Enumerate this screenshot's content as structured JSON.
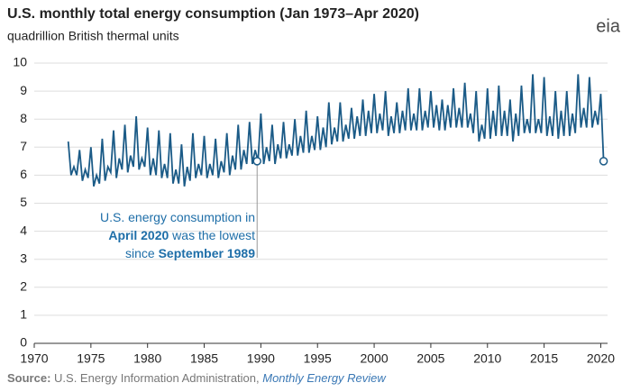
{
  "chart_data": {
    "type": "line",
    "title": "U.S. monthly total energy consumption (Jan 1973–Apr 2020)",
    "subtitle": "quadrillion British thermal units",
    "logo": "eia",
    "source": {
      "label": "Source:",
      "text": " U.S. Energy Information Administration, ",
      "link": "Monthly Energy Review"
    },
    "annotation": {
      "line1": "U.S. energy consumption in",
      "line2_bold": "April 2020",
      "line2": " was the lowest",
      "line3": "since ",
      "line3_bold": "September 1989"
    },
    "color": "#1b5b87",
    "grid": true,
    "xlim": [
      1970,
      2020.6
    ],
    "xticks": [
      1970,
      1975,
      1980,
      1985,
      1990,
      1995,
      2000,
      2005,
      2010,
      2015,
      2020
    ],
    "ylim": [
      0,
      10
    ],
    "yticks": [
      0,
      1,
      2,
      3,
      4,
      5,
      6,
      7,
      8,
      9,
      10
    ],
    "highlights": [
      {
        "x": 1989.67,
        "y": 6.5
      },
      {
        "x": 2020.25,
        "y": 6.5
      }
    ],
    "x": [
      1973,
      1973.25,
      1973.5,
      1973.75,
      1974,
      1974.25,
      1974.5,
      1974.75,
      1975,
      1975.25,
      1975.5,
      1975.75,
      1976,
      1976.25,
      1976.5,
      1976.75,
      1977,
      1977.25,
      1977.5,
      1977.75,
      1978,
      1978.25,
      1978.5,
      1978.75,
      1979,
      1979.25,
      1979.5,
      1979.75,
      1980,
      1980.25,
      1980.5,
      1980.75,
      1981,
      1981.25,
      1981.5,
      1981.75,
      1982,
      1982.25,
      1982.5,
      1982.75,
      1983,
      1983.25,
      1983.5,
      1983.75,
      1984,
      1984.25,
      1984.5,
      1984.75,
      1985,
      1985.25,
      1985.5,
      1985.75,
      1986,
      1986.25,
      1986.5,
      1986.75,
      1987,
      1987.25,
      1987.5,
      1987.75,
      1988,
      1988.25,
      1988.5,
      1988.75,
      1989,
      1989.25,
      1989.5,
      1989.75,
      1990,
      1990.25,
      1990.5,
      1990.75,
      1991,
      1991.25,
      1991.5,
      1991.75,
      1992,
      1992.25,
      1992.5,
      1992.75,
      1993,
      1993.25,
      1993.5,
      1993.75,
      1994,
      1994.25,
      1994.5,
      1994.75,
      1995,
      1995.25,
      1995.5,
      1995.75,
      1996,
      1996.25,
      1996.5,
      1996.75,
      1997,
      1997.25,
      1997.5,
      1997.75,
      1998,
      1998.25,
      1998.5,
      1998.75,
      1999,
      1999.25,
      1999.5,
      1999.75,
      2000,
      2000.25,
      2000.5,
      2000.75,
      2001,
      2001.25,
      2001.5,
      2001.75,
      2002,
      2002.25,
      2002.5,
      2002.75,
      2003,
      2003.25,
      2003.5,
      2003.75,
      2004,
      2004.25,
      2004.5,
      2004.75,
      2005,
      2005.25,
      2005.5,
      2005.75,
      2006,
      2006.25,
      2006.5,
      2006.75,
      2007,
      2007.25,
      2007.5,
      2007.75,
      2008,
      2008.25,
      2008.5,
      2008.75,
      2009,
      2009.25,
      2009.5,
      2009.75,
      2010,
      2010.25,
      2010.5,
      2010.75,
      2011,
      2011.25,
      2011.5,
      2011.75,
      2012,
      2012.25,
      2012.5,
      2012.75,
      2013,
      2013.25,
      2013.5,
      2013.75,
      2014,
      2014.25,
      2014.5,
      2014.75,
      2015,
      2015.25,
      2015.5,
      2015.75,
      2016,
      2016.25,
      2016.5,
      2016.75,
      2017,
      2017.25,
      2017.5,
      2017.75,
      2018,
      2018.25,
      2018.5,
      2018.75,
      2019,
      2019.25,
      2019.5,
      2019.75,
      2020,
      2020.25
    ],
    "values": [
      7.2,
      6.0,
      6.3,
      6.0,
      6.9,
      5.8,
      6.2,
      5.9,
      7.0,
      5.6,
      6.0,
      5.7,
      7.3,
      5.8,
      6.3,
      6.1,
      7.6,
      5.9,
      6.6,
      6.2,
      7.8,
      6.1,
      6.7,
      6.3,
      8.1,
      6.2,
      6.6,
      6.3,
      7.7,
      6.0,
      6.6,
      6.0,
      7.6,
      5.9,
      6.4,
      5.9,
      7.5,
      5.7,
      6.2,
      5.7,
      7.1,
      5.6,
      6.3,
      5.8,
      7.5,
      5.9,
      6.4,
      6.0,
      7.4,
      5.9,
      6.4,
      6.0,
      7.3,
      5.9,
      6.5,
      6.1,
      7.5,
      6.0,
      6.7,
      6.2,
      7.8,
      6.2,
      6.9,
      6.4,
      7.9,
      6.4,
      6.9,
      6.5,
      8.2,
      6.4,
      7.0,
      6.5,
      7.8,
      6.4,
      7.1,
      6.6,
      7.9,
      6.6,
      7.1,
      6.7,
      8.0,
      6.7,
      7.4,
      6.8,
      8.3,
      6.8,
      7.4,
      6.9,
      8.1,
      6.9,
      7.7,
      7.0,
      8.6,
      7.1,
      7.7,
      7.2,
      8.6,
      7.2,
      7.8,
      7.3,
      8.4,
      7.3,
      8.1,
      7.4,
      8.7,
      7.4,
      8.3,
      7.5,
      8.9,
      7.5,
      8.2,
      7.6,
      9.0,
      7.4,
      8.1,
      7.5,
      8.6,
      7.5,
      8.3,
      7.6,
      9.1,
      7.6,
      8.2,
      7.6,
      9.1,
      7.6,
      8.3,
      7.7,
      9.0,
      7.7,
      8.5,
      7.6,
      8.7,
      7.6,
      8.5,
      7.7,
      9.1,
      7.7,
      8.4,
      7.7,
      9.3,
      7.7,
      8.2,
      7.5,
      9.0,
      7.2,
      7.8,
      7.3,
      9.1,
      7.3,
      8.3,
      7.4,
      9.2,
      7.4,
      8.3,
      7.4,
      8.7,
      7.2,
      8.2,
      7.4,
      9.2,
      7.5,
      8.0,
      7.5,
      9.6,
      7.5,
      8.0,
      7.5,
      9.5,
      7.4,
      8.1,
      7.4,
      9.0,
      7.3,
      8.3,
      7.4,
      9.0,
      7.4,
      8.2,
      7.5,
      9.6,
      7.7,
      8.4,
      7.7,
      9.5,
      7.7,
      8.3,
      7.8,
      8.9,
      6.5
    ]
  }
}
